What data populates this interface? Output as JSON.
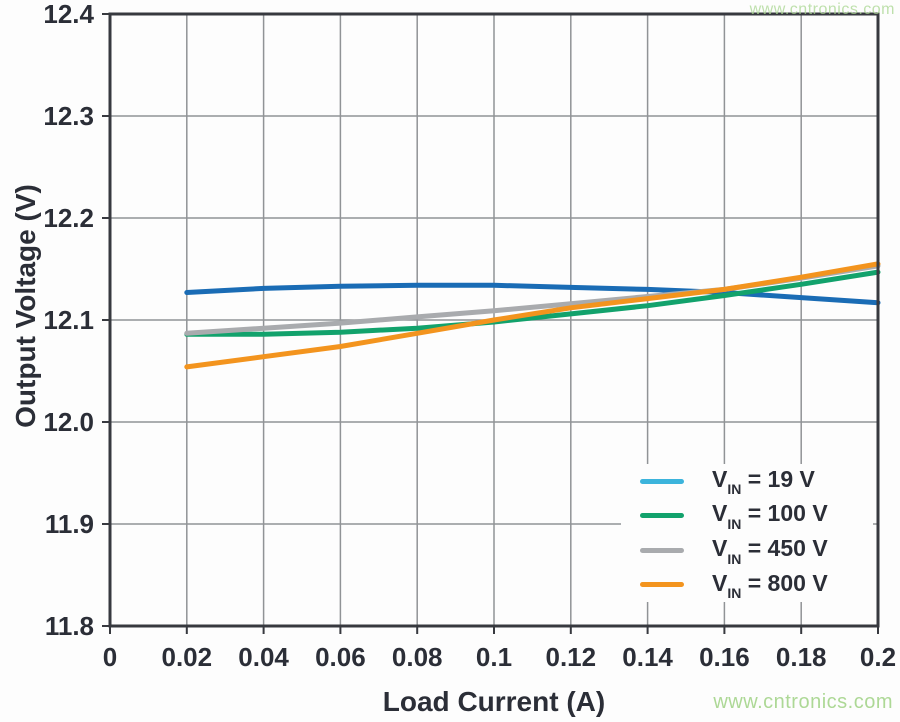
{
  "watermarks": {
    "top_right": "www.cntronics.com",
    "bottom_right": "www.cntronics.com",
    "color": "#a9d791"
  },
  "colors": {
    "plot_border": "#37393f",
    "gridline": "#909396",
    "axis_text": "#2b2e37",
    "background": "#fdfdfd"
  },
  "chart_data": {
    "type": "line",
    "title": "",
    "xlabel": "Load Current (A)",
    "ylabel": "Output Voltage (V)",
    "xlim": [
      0,
      0.2
    ],
    "ylim": [
      11.8,
      12.4
    ],
    "grid": true,
    "legend_position": "lower right",
    "xticks": [
      0,
      0.02,
      0.04,
      0.06,
      0.08,
      0.1,
      0.12,
      0.14,
      0.16,
      0.18,
      0.2
    ],
    "xtick_labels": [
      "0",
      "0.02",
      "0.04",
      "0.06",
      "0.08",
      "0.1",
      "0.12",
      "0.14",
      "0.16",
      "0.18",
      "0.2"
    ],
    "yticks": [
      11.8,
      11.9,
      12.0,
      12.1,
      12.2,
      12.3,
      12.4
    ],
    "ytick_labels": [
      "11.8",
      "11.9",
      "12.0",
      "12.1",
      "12.2",
      "12.3",
      "12.4"
    ],
    "x": [
      0.02,
      0.04,
      0.06,
      0.08,
      0.1,
      0.12,
      0.14,
      0.16,
      0.18,
      0.2
    ],
    "series": [
      {
        "name": "VIN = 19 V",
        "legend": {
          "v": "V",
          "sub": "IN",
          "eq": " = 19 V"
        },
        "line_color": "#1a6cb5",
        "legend_color": "#3cb4dc",
        "values": [
          12.127,
          12.131,
          12.133,
          12.134,
          12.134,
          12.132,
          12.13,
          12.127,
          12.122,
          12.117
        ]
      },
      {
        "name": "VIN = 100 V",
        "legend": {
          "v": "V",
          "sub": "IN",
          "eq": " = 100 V"
        },
        "line_color": "#12a26c",
        "legend_color": "#12a26c",
        "values": [
          12.086,
          12.086,
          12.088,
          12.092,
          12.098,
          12.106,
          12.114,
          12.124,
          12.135,
          12.147
        ]
      },
      {
        "name": "VIN = 450 V",
        "legend": {
          "v": "V",
          "sub": "IN",
          "eq": " = 450 V"
        },
        "line_color": "#a9abae",
        "legend_color": "#a9abae",
        "values": [
          12.087,
          12.092,
          12.097,
          12.103,
          12.109,
          12.116,
          12.123,
          12.13,
          12.141,
          12.153
        ]
      },
      {
        "name": "VIN = 800 V",
        "legend": {
          "v": "V",
          "sub": "IN",
          "eq": " = 800 V"
        },
        "line_color": "#f3941e",
        "legend_color": "#f3941e",
        "values": [
          12.054,
          12.064,
          12.074,
          12.087,
          12.1,
          12.112,
          12.121,
          12.13,
          12.142,
          12.155
        ]
      }
    ]
  }
}
